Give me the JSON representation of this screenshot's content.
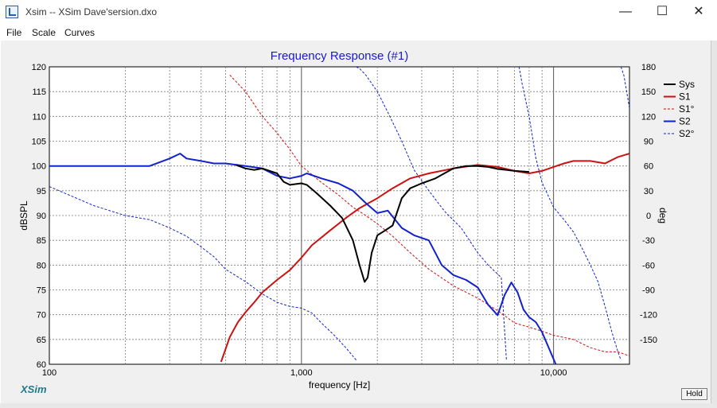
{
  "window": {
    "title": "Xsim -- XSim Dave'sersion.dxo",
    "minimize_glyph": "—",
    "maximize_glyph": "☐",
    "close_glyph": "✕"
  },
  "menu": {
    "items": [
      "File",
      "Scale",
      "Curves"
    ]
  },
  "brand": "XSim",
  "hold_label": "Hold",
  "chart_data": {
    "type": "line",
    "title": "Frequency Response (#1)",
    "xlabel": "frequency [Hz]",
    "ylabel": "dBSPL",
    "y2label": "deg",
    "xscale": "log",
    "xlim": [
      100,
      20000
    ],
    "ylim": [
      60,
      120
    ],
    "y2lim": [
      -180,
      180
    ],
    "grid": true,
    "legend_position": "right",
    "xticks": [
      {
        "value": 100,
        "label": "100"
      },
      {
        "value": 1000,
        "label": "1,000"
      },
      {
        "value": 10000,
        "label": "10,000"
      }
    ],
    "yticks": [
      60,
      65,
      70,
      75,
      80,
      85,
      90,
      95,
      100,
      105,
      110,
      115,
      120
    ],
    "y2ticks": [
      -150,
      -120,
      -90,
      -60,
      -30,
      0,
      30,
      60,
      90,
      120,
      150,
      180
    ],
    "colors": {
      "red": "#cc1111",
      "blue": "#1122cc",
      "black": "#000000",
      "title": "#1a1acc"
    },
    "series": [
      {
        "name": "Sys",
        "color": "#000000",
        "style": "solid",
        "width": 2,
        "axis": "left",
        "x": [
          550,
          600,
          650,
          700,
          800,
          850,
          900,
          1000,
          1050,
          1150,
          1300,
          1450,
          1600,
          1700,
          1780,
          1830,
          1900,
          2000,
          2150,
          2300,
          2500,
          2700,
          3000,
          3400,
          4000,
          4500,
          5000,
          5500,
          6000,
          7000,
          8000
        ],
        "y": [
          100.2,
          99.5,
          99.2,
          99.5,
          98.5,
          96.8,
          96.2,
          96.5,
          96.2,
          94.5,
          92.0,
          89.5,
          85.0,
          80.0,
          76.6,
          77.5,
          82.5,
          86.0,
          87.0,
          88.0,
          93.5,
          95.5,
          96.5,
          97.5,
          99.5,
          100.0,
          100.0,
          99.8,
          99.4,
          99.0,
          98.8
        ]
      },
      {
        "name": "S1",
        "color": "#cc1111",
        "style": "solid",
        "width": 2,
        "axis": "left",
        "x": [
          480,
          520,
          560,
          600,
          650,
          700,
          800,
          900,
          1000,
          1100,
          1300,
          1500,
          1700,
          2000,
          2300,
          2700,
          3200,
          4000,
          5000,
          6000,
          7000,
          8000,
          9000,
          10000,
          11000,
          12000,
          14000,
          16000,
          18000,
          20000
        ],
        "y": [
          60.5,
          65.5,
          68.5,
          70.5,
          72.5,
          74.5,
          77.0,
          79.0,
          81.5,
          84.0,
          87.0,
          89.5,
          91.5,
          93.5,
          95.5,
          97.5,
          98.5,
          99.5,
          100.2,
          99.8,
          99.0,
          98.5,
          99.0,
          99.8,
          100.5,
          101.0,
          101.0,
          100.5,
          101.8,
          102.5
        ]
      },
      {
        "name": "S1°",
        "color": "#cc1111",
        "style": "dashed",
        "width": 1,
        "axis": "right",
        "x": [
          520,
          600,
          700,
          800,
          900,
          1000,
          1200,
          1400,
          1600,
          1800,
          2000,
          2300,
          2700,
          3200,
          4000,
          5000,
          6000,
          7000,
          8000,
          9000,
          10000,
          12000,
          14000,
          16000,
          18000,
          20000
        ],
        "y": [
          170,
          150,
          120,
          100,
          80,
          60,
          40,
          25,
          10,
          0,
          -10,
          -25,
          -45,
          -65,
          -85,
          -100,
          -115,
          -130,
          -135,
          -140,
          -145,
          -150,
          -160,
          -165,
          -165,
          -170
        ]
      },
      {
        "name": "S2",
        "color": "#1122cc",
        "style": "solid",
        "width": 2,
        "axis": "left",
        "x": [
          100,
          150,
          200,
          250,
          300,
          330,
          350,
          400,
          450,
          500,
          600,
          700,
          800,
          900,
          1000,
          1050,
          1200,
          1400,
          1600,
          1800,
          2000,
          2200,
          2500,
          2800,
          3200,
          3600,
          4000,
          4500,
          5000,
          5500,
          6000,
          6400,
          6800,
          7200,
          7600,
          8000,
          8500,
          9000,
          10200
        ],
        "y": [
          100,
          100,
          100,
          100,
          101.5,
          102.5,
          101.5,
          101,
          100.5,
          100.5,
          100,
          99.5,
          98,
          97.5,
          98,
          98.5,
          97.5,
          96.5,
          95,
          92.5,
          90.5,
          91,
          87.5,
          86.0,
          85.0,
          80.0,
          78.0,
          77.0,
          75.5,
          72.0,
          69.9,
          74.0,
          76.5,
          74.5,
          71.0,
          69.5,
          68.5,
          66.5,
          60.0
        ]
      },
      {
        "name": "S2°",
        "color": "#1122cc",
        "style": "dashed",
        "width": 1,
        "axis": "right",
        "x": [
          100,
          150,
          200,
          250,
          300,
          350,
          400,
          450,
          500,
          600,
          700,
          800,
          900,
          1000,
          1100,
          1200,
          1350,
          1500,
          1650
        ],
        "y": [
          35,
          12,
          0,
          -5,
          -15,
          -25,
          -38,
          -50,
          -65,
          -80,
          -95,
          -105,
          -110,
          -112,
          -118,
          -130,
          -145,
          -160,
          -175
        ]
      },
      {
        "name": "S2°",
        "color": "#1122cc",
        "style": "dashed",
        "width": 1,
        "axis": "right",
        "x": [
          1650,
          1700,
          1800,
          2000,
          2200,
          2500,
          2800,
          3200,
          3700,
          4300,
          5000,
          5500,
          6200,
          6500
        ],
        "y": [
          180,
          178,
          170,
          150,
          125,
          90,
          55,
          30,
          5,
          -15,
          -45,
          -60,
          -75,
          -175
        ]
      },
      {
        "name": "S2°",
        "color": "#1122cc",
        "style": "dashed",
        "width": 1,
        "axis": "right",
        "x": [
          7300,
          7500,
          8000,
          8500,
          9000,
          10000,
          11000,
          12000,
          13000,
          14000,
          15000,
          16000,
          17000,
          18000,
          18500
        ],
        "y": [
          180,
          160,
          120,
          70,
          40,
          10,
          -5,
          -20,
          -40,
          -60,
          -80,
          -110,
          -140,
          -165,
          -175
        ]
      },
      {
        "name": "S2°",
        "color": "#1122cc",
        "style": "dashed",
        "width": 1,
        "axis": "right",
        "x": [
          18500,
          19000,
          19500,
          20000
        ],
        "y": [
          180,
          170,
          150,
          130
        ]
      }
    ],
    "legend": [
      {
        "label": "Sys",
        "color": "#000000",
        "style": "solid"
      },
      {
        "label": "S1",
        "color": "#cc1111",
        "style": "solid"
      },
      {
        "label": "S1°",
        "color": "#cc1111",
        "style": "dashed"
      },
      {
        "label": "S2",
        "color": "#1122cc",
        "style": "solid"
      },
      {
        "label": "S2°",
        "color": "#1122cc",
        "style": "dashed"
      }
    ]
  }
}
